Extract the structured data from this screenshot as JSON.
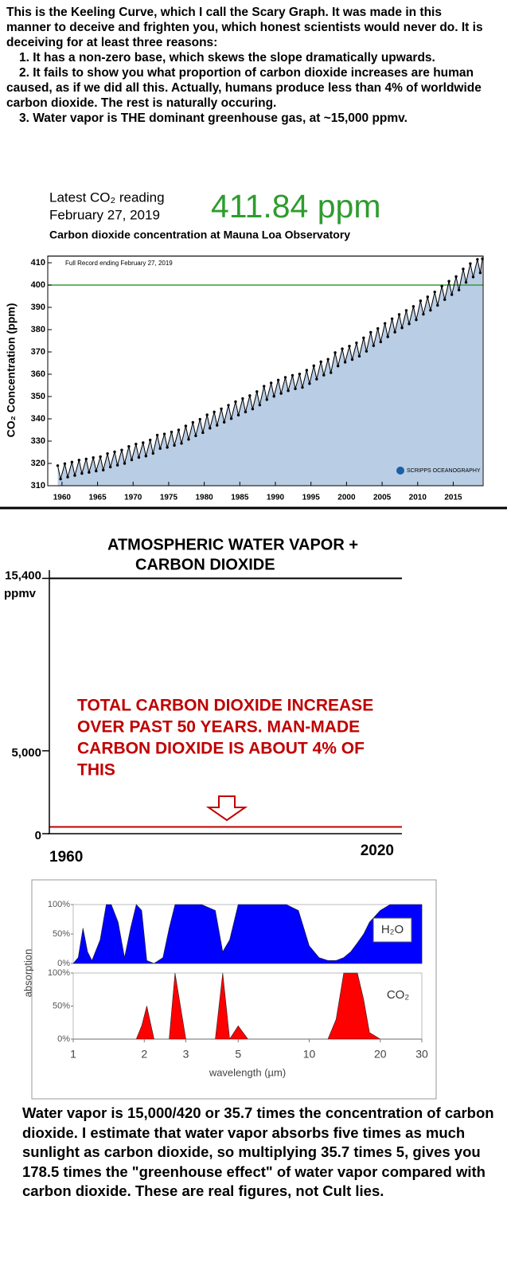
{
  "intro": {
    "paragraph": "This is the Keeling Curve, which I call the Scary Graph. It was made in this manner to deceive and frighten you, which honest scientists would never do.  It is deceiving for at least three reasons:",
    "reasons": [
      "1.  It has a non-zero base, which skews the slope dramatically upwards.",
      "2.  It fails to show you what proportion of carbon dioxide increases are human caused, as if we did all this.  Actually, humans produce less than 4% of worldwide carbon dioxide. The rest is naturally occuring.",
      "3.  Water vapor is THE dominant greenhouse gas, at ~15,000 ppmv."
    ]
  },
  "chart_data": [
    {
      "type": "line",
      "header_label": "Latest CO₂ reading",
      "header_date": "February 27, 2019",
      "header_value": "411.84 ppm",
      "title": "Carbon dioxide concentration at Mauna Loa Observatory",
      "annotation": "Full Record ending February 27, 2019",
      "ylabel": "CO₂ Concentration (ppm)",
      "logo": "SCRIPPS OCEANOGRAPHY",
      "markers": true,
      "fill_color": "#b9cde5",
      "reference_line": {
        "value": 400,
        "color": "#3c9a3c"
      },
      "x": [
        1959.4,
        1959.8,
        1960.4,
        1960.8,
        1961.4,
        1961.8,
        1962.4,
        1962.8,
        1963.4,
        1963.8,
        1964.4,
        1964.8,
        1965.4,
        1965.8,
        1966.4,
        1966.8,
        1967.4,
        1967.8,
        1968.4,
        1968.8,
        1969.4,
        1969.8,
        1970.4,
        1970.8,
        1971.4,
        1971.8,
        1972.4,
        1972.8,
        1973.4,
        1973.8,
        1974.4,
        1974.8,
        1975.4,
        1975.8,
        1976.4,
        1976.8,
        1977.4,
        1977.8,
        1978.4,
        1978.8,
        1979.4,
        1979.8,
        1980.4,
        1980.8,
        1981.4,
        1981.8,
        1982.4,
        1982.8,
        1983.4,
        1983.8,
        1984.4,
        1984.8,
        1985.4,
        1985.8,
        1986.4,
        1986.8,
        1987.4,
        1987.8,
        1988.4,
        1988.8,
        1989.4,
        1989.8,
        1990.4,
        1990.8,
        1991.4,
        1991.8,
        1992.4,
        1992.8,
        1993.4,
        1993.8,
        1994.4,
        1994.8,
        1995.4,
        1995.8,
        1996.4,
        1996.8,
        1997.4,
        1997.8,
        1998.4,
        1998.8,
        1999.4,
        1999.8,
        2000.4,
        2000.8,
        2001.4,
        2001.8,
        2002.4,
        2002.8,
        2003.4,
        2003.8,
        2004.4,
        2004.8,
        2005.4,
        2005.8,
        2006.4,
        2006.8,
        2007.4,
        2007.8,
        2008.4,
        2008.8,
        2009.4,
        2009.8,
        2010.4,
        2010.8,
        2011.4,
        2011.8,
        2012.4,
        2012.8,
        2013.4,
        2013.8,
        2014.4,
        2014.8,
        2015.4,
        2015.8,
        2016.4,
        2016.8,
        2017.4,
        2017.8,
        2018.4,
        2018.8,
        2019.1
      ],
      "series": [
        {
          "color": "#000000",
          "values": [
            319.0,
            313.0,
            319.9,
            313.9,
            320.6,
            314.6,
            321.5,
            315.5,
            322.0,
            316.0,
            322.6,
            316.6,
            323.0,
            317.0,
            324.4,
            318.4,
            325.2,
            319.2,
            326.0,
            320.0,
            327.6,
            321.6,
            328.7,
            322.7,
            329.3,
            323.3,
            330.5,
            324.5,
            332.7,
            326.7,
            333.2,
            327.2,
            334.1,
            328.1,
            335.0,
            329.0,
            336.8,
            330.8,
            338.4,
            332.4,
            339.8,
            333.8,
            341.8,
            335.8,
            343.1,
            337.1,
            344.5,
            338.5,
            346.1,
            340.1,
            347.7,
            341.7,
            349.1,
            343.1,
            350.4,
            344.4,
            352.2,
            346.2,
            354.6,
            348.6,
            356.1,
            350.1,
            357.4,
            351.4,
            358.6,
            352.6,
            359.5,
            353.5,
            360.1,
            354.1,
            361.8,
            355.8,
            363.8,
            357.8,
            365.6,
            359.6,
            366.7,
            360.7,
            369.7,
            363.7,
            371.4,
            365.4,
            372.6,
            366.6,
            374.1,
            368.1,
            376.3,
            370.3,
            378.8,
            372.8,
            380.5,
            374.5,
            382.8,
            376.8,
            384.9,
            378.9,
            386.8,
            380.8,
            388.6,
            382.6,
            390.4,
            384.4,
            392.9,
            386.9,
            394.7,
            388.7,
            396.9,
            390.9,
            399.5,
            393.5,
            401.7,
            395.7,
            403.8,
            397.8,
            407.2,
            401.2,
            409.6,
            403.6,
            411.5,
            405.5,
            411.8
          ]
        }
      ],
      "xlim": [
        1958,
        2019.2
      ],
      "ylim": [
        310,
        413
      ],
      "xticks": [
        1960,
        1965,
        1970,
        1975,
        1980,
        1985,
        1990,
        1995,
        2000,
        2005,
        2010,
        2015
      ],
      "yticks": [
        310,
        320,
        330,
        340,
        350,
        360,
        370,
        380,
        390,
        400,
        410
      ]
    },
    {
      "type": "line",
      "title_lines": [
        "ATMOSPHERIC WATER VAPOR +",
        "CARBON DIOXIDE"
      ],
      "ylabel": "ppmv",
      "x": [
        1960,
        2020
      ],
      "series": [
        {
          "color": "#000000",
          "values": [
            15400,
            15400
          ]
        },
        {
          "color": "#c00000",
          "values": [
            411,
            411
          ]
        }
      ],
      "annotation_lines": [
        "TOTAL CARBON DIOXIDE INCREASE",
        "OVER PAST 50 YEARS.  MAN-MADE",
        "CARBON DIOXIDE IS ABOUT 4% OF",
        "THIS"
      ],
      "annotation_color": "#c00000",
      "xlim": [
        1960,
        2020
      ],
      "ylim": [
        0,
        15900
      ],
      "xticks": [
        1960,
        2020
      ],
      "yticks": [
        0,
        {
          "value": 5000,
          "label": "5,000"
        },
        {
          "value": 15400,
          "label": "15,400"
        }
      ]
    },
    {
      "type": "area",
      "xscale": "log",
      "xlabel": "wavelength (µm)",
      "ylabel": "absorption",
      "x": [
        1,
        1.05,
        1.1,
        1.15,
        1.2,
        1.3,
        1.38,
        1.45,
        1.55,
        1.65,
        1.75,
        1.85,
        1.95,
        2.05,
        2.2,
        2.4,
        2.55,
        2.7,
        3,
        3.5,
        4,
        4.3,
        4.6,
        5,
        5.5,
        6,
        7,
        8,
        9,
        10,
        11,
        12,
        13,
        14,
        15,
        16,
        17,
        18,
        20,
        22,
        25,
        30
      ],
      "series": [
        {
          "name": "H₂O",
          "color": "#0000ff",
          "values": [
            0,
            10,
            60,
            20,
            5,
            40,
            100,
            100,
            70,
            10,
            60,
            100,
            90,
            5,
            0,
            10,
            60,
            100,
            100,
            100,
            90,
            20,
            40,
            100,
            100,
            100,
            100,
            100,
            90,
            30,
            10,
            5,
            5,
            10,
            20,
            35,
            50,
            70,
            90,
            100,
            100,
            100
          ]
        },
        {
          "name": "CO₂",
          "color": "#ff0000",
          "values": [
            0,
            0,
            0,
            0,
            0,
            0,
            0,
            0,
            0,
            0,
            0,
            0,
            20,
            50,
            0,
            0,
            0,
            100,
            0,
            0,
            0,
            100,
            0,
            20,
            0,
            0,
            0,
            0,
            0,
            0,
            0,
            0,
            30,
            100,
            100,
            100,
            60,
            10,
            0,
            0,
            0,
            0
          ]
        }
      ],
      "xlim": [
        1,
        30
      ],
      "ylim": [
        0,
        100
      ],
      "xticks": [
        1,
        2,
        3,
        5,
        10,
        20,
        30
      ],
      "yticks": [
        {
          "value": 0,
          "label": "0%"
        },
        {
          "value": 50,
          "label": "50%"
        },
        {
          "value": 100,
          "label": "100%"
        }
      ]
    }
  ],
  "outro": "Water vapor is 15,000/420 or 35.7 times the concentration of carbon dioxide.  I estimate that water vapor absorbs five times as much sunlight as carbon dioxide, so multiplying 35.7 times 5,  gives you 178.5 times the \"greenhouse effect\" of water vapor compared with carbon dioxide.  These are real figures, not Cult lies."
}
